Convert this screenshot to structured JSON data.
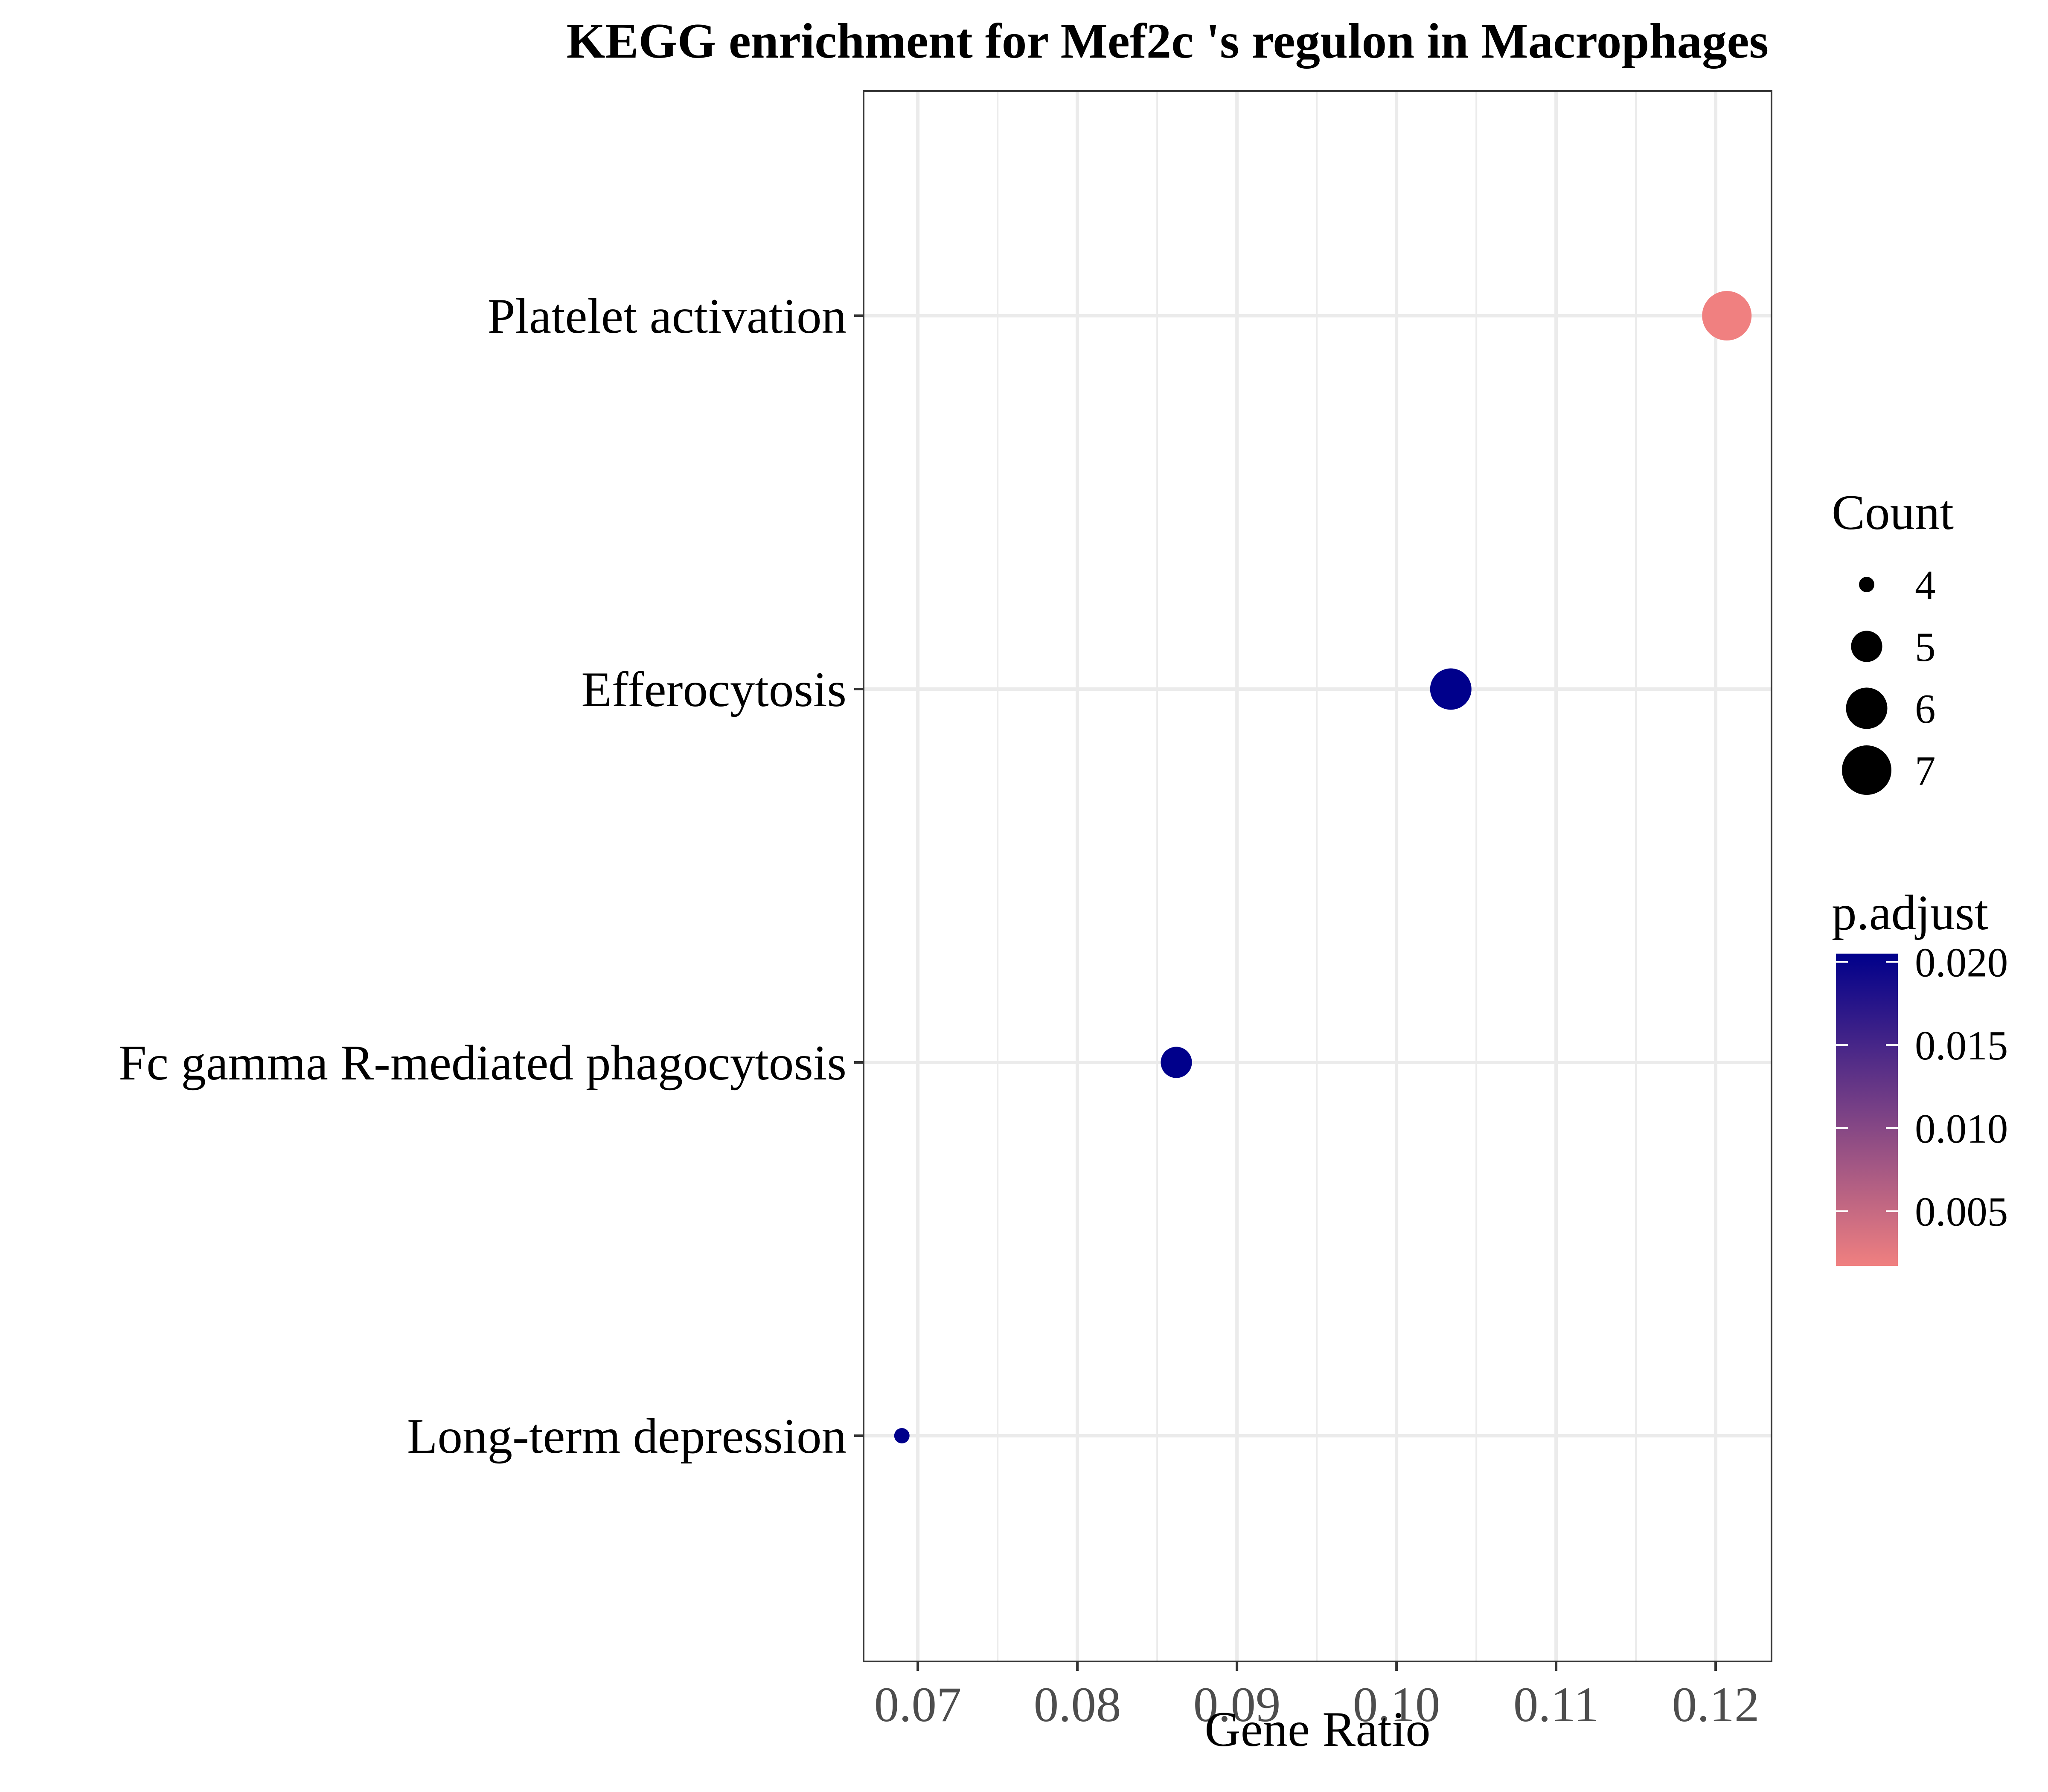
{
  "chart_data": {
    "type": "scatter",
    "title": "KEGG enrichment for Mef2c 's regulon in Macrophages",
    "xlabel": "Gene Ratio",
    "ylabel": "",
    "xlim": [
      0.0666,
      0.1235
    ],
    "xticks": [
      0.07,
      0.08,
      0.09,
      0.1,
      0.11,
      0.12
    ],
    "xtick_labels": [
      "0.07",
      "0.08",
      "0.09",
      "0.10",
      "0.11",
      "0.12"
    ],
    "categories": [
      "Platelet activation",
      "Efferocytosis",
      "Fc gamma R-mediated phagocytosis",
      "Long-term depression"
    ],
    "points": [
      {
        "term": "Platelet activation",
        "gene_ratio": 0.1207,
        "count": 7,
        "p_adjust": 0.0017
      },
      {
        "term": "Efferocytosis",
        "gene_ratio": 0.1034,
        "count": 6,
        "p_adjust": 0.0205
      },
      {
        "term": "Fc gamma R-mediated phagocytosis",
        "gene_ratio": 0.0862,
        "count": 5,
        "p_adjust": 0.0205
      },
      {
        "term": "Long-term depression",
        "gene_ratio": 0.069,
        "count": 4,
        "p_adjust": 0.0205
      }
    ],
    "grid": true,
    "legend_position": "right",
    "size_legend": {
      "title": "Count",
      "entries": [
        {
          "label": "4",
          "value": 4
        },
        {
          "label": "5",
          "value": 5
        },
        {
          "label": "6",
          "value": 6
        },
        {
          "label": "7",
          "value": 7
        }
      ]
    },
    "color_legend": {
      "title": "p.adjust",
      "range": [
        0.0017,
        0.0205
      ],
      "low_color": "#f08080",
      "high_color": "#00008b",
      "ticks": [
        0.005,
        0.01,
        0.015,
        0.02
      ],
      "tick_labels": [
        "0.005",
        "0.010",
        "0.015",
        "0.020"
      ]
    }
  }
}
